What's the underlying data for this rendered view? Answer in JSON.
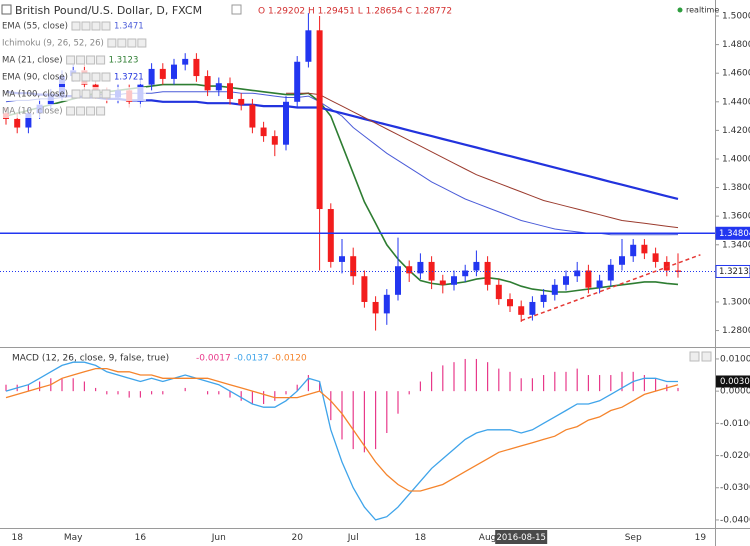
{
  "chart_data": [
    {
      "type": "candlestick",
      "title": "British Pound/U.S. Dollar, D, FXCM",
      "readout": "O 1.29202 H 1.29451 L 1.28654 C 1.28772",
      "status": "realtime",
      "categories": [
        null,
        "18",
        null,
        null,
        null,
        null,
        "May",
        null,
        null,
        null,
        null,
        null,
        "16",
        null,
        null,
        null,
        null,
        null,
        null,
        "Jun",
        null,
        null,
        null,
        null,
        null,
        null,
        "20",
        null,
        null,
        null,
        null,
        "Jul",
        null,
        null,
        null,
        null,
        null,
        "18",
        null,
        null,
        null,
        null,
        null,
        "Aug",
        null,
        null,
        "2016-08-15",
        null,
        null,
        null,
        null,
        null,
        null,
        null,
        null,
        null,
        "Sep",
        null,
        null,
        null,
        null,
        null,
        "19"
      ],
      "crosshair": 46,
      "open": [
        1.432,
        1.428,
        1.422,
        1.432,
        1.438,
        1.445,
        1.458,
        1.462,
        1.452,
        1.446,
        1.443,
        1.448,
        1.44,
        1.452,
        1.463,
        1.456,
        1.466,
        1.47,
        1.458,
        1.448,
        1.453,
        1.442,
        1.438,
        1.422,
        1.416,
        1.41,
        1.44,
        1.468,
        1.49,
        1.365,
        1.328,
        1.332,
        1.318,
        1.3,
        1.292,
        1.305,
        1.325,
        1.32,
        1.328,
        1.315,
        1.312,
        1.318,
        1.322,
        1.328,
        1.312,
        1.302,
        1.297,
        1.291,
        1.3,
        1.305,
        1.312,
        1.318,
        1.322,
        1.31,
        1.315,
        1.326,
        1.332,
        1.34,
        1.334,
        1.328,
        1.322,
        null,
        null
      ],
      "high": [
        1.436,
        1.432,
        1.436,
        1.442,
        1.449,
        1.462,
        1.466,
        1.466,
        1.456,
        1.45,
        1.452,
        1.452,
        1.456,
        1.467,
        1.467,
        1.47,
        1.474,
        1.474,
        1.462,
        1.457,
        1.457,
        1.446,
        1.442,
        1.426,
        1.42,
        1.444,
        1.472,
        1.502,
        1.5,
        1.369,
        1.344,
        1.338,
        1.322,
        1.304,
        1.309,
        1.345,
        1.329,
        1.334,
        1.332,
        1.319,
        1.322,
        1.326,
        1.336,
        1.332,
        1.316,
        1.306,
        1.301,
        1.304,
        1.309,
        1.316,
        1.322,
        1.328,
        1.326,
        1.319,
        1.33,
        1.344,
        1.344,
        1.344,
        1.338,
        1.332,
        1.334,
        null,
        null
      ],
      "low": [
        1.424,
        1.418,
        1.418,
        1.428,
        1.434,
        1.441,
        1.454,
        1.448,
        1.442,
        1.439,
        1.439,
        1.436,
        1.436,
        1.448,
        1.452,
        1.452,
        1.462,
        1.454,
        1.444,
        1.444,
        1.438,
        1.434,
        1.418,
        1.412,
        1.402,
        1.406,
        1.436,
        1.464,
        1.322,
        1.324,
        1.32,
        1.312,
        1.296,
        1.28,
        1.284,
        1.301,
        1.314,
        1.316,
        1.309,
        1.306,
        1.308,
        1.314,
        1.318,
        1.308,
        1.298,
        1.293,
        1.286,
        1.287,
        1.296,
        1.301,
        1.308,
        1.314,
        1.306,
        1.306,
        1.311,
        1.322,
        1.328,
        1.33,
        1.324,
        1.318,
        1.317,
        null,
        null
      ],
      "close": [
        1.428,
        1.422,
        1.432,
        1.438,
        1.445,
        1.458,
        1.462,
        1.452,
        1.446,
        1.443,
        1.448,
        1.44,
        1.452,
        1.463,
        1.456,
        1.466,
        1.47,
        1.458,
        1.448,
        1.453,
        1.442,
        1.438,
        1.422,
        1.416,
        1.41,
        1.44,
        1.468,
        1.49,
        1.365,
        1.328,
        1.332,
        1.318,
        1.3,
        1.292,
        1.305,
        1.325,
        1.32,
        1.328,
        1.315,
        1.312,
        1.318,
        1.322,
        1.328,
        1.312,
        1.302,
        1.297,
        1.291,
        1.3,
        1.305,
        1.312,
        1.318,
        1.322,
        1.31,
        1.315,
        1.326,
        1.332,
        1.34,
        1.334,
        1.328,
        1.322,
        1.321,
        null,
        null
      ],
      "up_color": "#2236f0",
      "down_color": "#f21d1d",
      "series": [
        {
          "name": "EMA (55, close)",
          "value_label": "1.3471",
          "color": "#4a5bd8",
          "width": 1,
          "values": [
            1.44,
            1.441,
            1.441,
            1.442,
            1.442,
            1.443,
            1.444,
            1.444,
            1.445,
            1.445,
            1.445,
            1.446,
            1.446,
            1.446,
            1.447,
            1.447,
            1.447,
            1.447,
            1.447,
            1.447,
            1.447,
            1.446,
            1.446,
            1.445,
            1.444,
            1.443,
            1.443,
            1.444,
            1.44,
            1.435,
            1.43,
            1.422,
            1.416,
            1.41,
            1.404,
            1.399,
            1.394,
            1.389,
            1.384,
            1.38,
            1.376,
            1.372,
            1.369,
            1.366,
            1.363,
            1.36,
            1.357,
            1.355,
            1.353,
            1.351,
            1.35,
            1.349,
            1.348,
            1.348,
            1.347,
            1.347,
            1.347,
            1.347,
            1.347,
            1.347,
            1.3471,
            null,
            null
          ]
        },
        {
          "name": "MA (21, close)",
          "value_label": "1.3123",
          "color": "#2e7d32",
          "width": 1.6,
          "values": [
            1.43,
            1.432,
            1.434,
            1.436,
            1.438,
            1.44,
            1.442,
            1.444,
            1.446,
            1.447,
            1.448,
            1.449,
            1.45,
            1.451,
            1.452,
            1.452,
            1.452,
            1.452,
            1.451,
            1.451,
            1.45,
            1.449,
            1.448,
            1.447,
            1.446,
            1.445,
            1.445,
            1.446,
            1.44,
            1.43,
            1.41,
            1.39,
            1.37,
            1.355,
            1.34,
            1.33,
            1.322,
            1.315,
            1.313,
            1.312,
            1.313,
            1.314,
            1.316,
            1.317,
            1.316,
            1.314,
            1.311,
            1.309,
            1.308,
            1.307,
            1.307,
            1.308,
            1.309,
            1.31,
            1.311,
            1.312,
            1.313,
            1.314,
            1.314,
            1.313,
            1.3123,
            null,
            null
          ]
        },
        {
          "name": "EMA (90, close)",
          "value_label": "1.3721",
          "color": "#2233dd",
          "width": 2.2,
          "values": [
            1.447,
            1.446,
            1.446,
            1.445,
            1.445,
            1.444,
            1.444,
            1.443,
            1.443,
            1.442,
            1.442,
            1.441,
            1.441,
            1.441,
            1.44,
            1.44,
            1.44,
            1.44,
            1.439,
            1.439,
            1.439,
            1.438,
            1.438,
            1.437,
            1.437,
            1.437,
            1.436,
            1.436,
            1.436,
            1.434,
            1.432,
            1.43,
            1.428,
            1.426,
            1.424,
            1.422,
            1.42,
            1.418,
            1.416,
            1.414,
            1.412,
            1.41,
            1.408,
            1.406,
            1.404,
            1.402,
            1.4,
            1.398,
            1.396,
            1.394,
            1.392,
            1.39,
            1.388,
            1.386,
            1.384,
            1.382,
            1.38,
            1.378,
            1.376,
            1.374,
            1.3721,
            null,
            null
          ]
        },
        {
          "name": "MA (100, close)",
          "color": "#9b3b2e",
          "width": 1,
          "values": [
            null,
            null,
            null,
            null,
            null,
            null,
            null,
            null,
            null,
            null,
            null,
            null,
            null,
            null,
            null,
            null,
            null,
            null,
            null,
            null,
            null,
            null,
            null,
            null,
            null,
            1.446,
            1.446,
            1.446,
            1.445,
            1.441,
            1.437,
            1.433,
            1.429,
            1.425,
            1.421,
            1.417,
            1.413,
            1.409,
            1.405,
            1.401,
            1.397,
            1.393,
            1.389,
            1.386,
            1.383,
            1.38,
            1.377,
            1.374,
            1.371,
            1.369,
            1.367,
            1.365,
            1.363,
            1.361,
            1.359,
            1.357,
            1.356,
            1.355,
            1.354,
            1.353,
            1.352,
            null,
            null
          ]
        }
      ],
      "studies": [
        "Ichimoku (9, 26, 52, 26)",
        "MA (10, close)"
      ],
      "levels": [
        {
          "value": 1.34804,
          "label": "1.34804",
          "color": "#2236f0",
          "style": "solid"
        },
        {
          "value": 1.32132,
          "label": "1.32132",
          "color": "#2236f0",
          "style": "dotted"
        }
      ],
      "trendline": {
        "x": [
          46,
          62
        ],
        "y": [
          1.287,
          1.333
        ],
        "color": "#e53935"
      },
      "ylim": [
        1.2685,
        1.5098
      ],
      "yticks": [
        {
          "value": 1.28,
          "label": "1.28000"
        },
        {
          "value": 1.3,
          "label": "1.30000"
        },
        {
          "value": 1.34,
          "label": "1.34000"
        },
        {
          "value": 1.36,
          "label": "1.36000"
        },
        {
          "value": 1.38,
          "label": "1.38000"
        },
        {
          "value": 1.4,
          "label": "1.40000"
        },
        {
          "value": 1.42,
          "label": "1.42000"
        },
        {
          "value": 1.44,
          "label": "1.44000"
        },
        {
          "value": 1.46,
          "label": "1.46000"
        },
        {
          "value": 1.48,
          "label": "1.48000"
        },
        {
          "value": 1.5,
          "label": "1.50000"
        }
      ],
      "grid": false
    },
    {
      "type": "macd",
      "title": "MACD (12, 26, close, 9, false, true)",
      "series": [
        {
          "style": "histogram",
          "value_label": "-0.0017",
          "color": "#e8398a",
          "values": [
            0.002,
            0.002,
            0.002,
            0.003,
            0.004,
            0.004,
            0.004,
            0.003,
            0.001,
            -0.001,
            -0.001,
            -0.002,
            -0.002,
            -0.001,
            -0.001,
            0,
            0.001,
            0,
            -0.001,
            -0.001,
            -0.002,
            -0.003,
            -0.004,
            -0.004,
            -0.003,
            -0.001,
            0.002,
            0.005,
            0.003,
            -0.009,
            -0.015,
            -0.018,
            -0.019,
            -0.018,
            -0.013,
            -0.007,
            -0.001,
            0.003,
            0.006,
            0.008,
            0.009,
            0.01,
            0.01,
            0.009,
            0.007,
            0.006,
            0.004,
            0.004,
            0.005,
            0.006,
            0.006,
            0.007,
            0.005,
            0.005,
            0.005,
            0.006,
            0.006,
            0.005,
            0.004,
            0.002,
            0.001,
            null,
            null
          ]
        },
        {
          "style": "line",
          "value_label": "-0.0137",
          "color": "#3fa4ea",
          "values": [
            0.0,
            0.001,
            0.002,
            0.004,
            0.006,
            0.008,
            0.009,
            0.009,
            0.008,
            0.006,
            0.005,
            0.004,
            0.003,
            0.004,
            0.003,
            0.004,
            0.005,
            0.004,
            0.003,
            0.002,
            0.0,
            -0.002,
            -0.004,
            -0.005,
            -0.005,
            -0.003,
            0.0,
            0.004,
            0.003,
            -0.012,
            -0.022,
            -0.03,
            -0.036,
            -0.04,
            -0.039,
            -0.036,
            -0.032,
            -0.028,
            -0.024,
            -0.021,
            -0.018,
            -0.015,
            -0.013,
            -0.012,
            -0.012,
            -0.012,
            -0.013,
            -0.012,
            -0.01,
            -0.008,
            -0.006,
            -0.004,
            -0.004,
            -0.003,
            -0.001,
            0.001,
            0.003,
            0.004,
            0.004,
            0.003,
            0.003,
            null,
            null
          ]
        },
        {
          "style": "line",
          "value_label": "-0.0120",
          "color": "#f5842c",
          "values": [
            -0.002,
            -0.001,
            0.0,
            0.001,
            0.002,
            0.004,
            0.005,
            0.006,
            0.007,
            0.007,
            0.006,
            0.006,
            0.005,
            0.005,
            0.004,
            0.004,
            0.004,
            0.004,
            0.004,
            0.003,
            0.002,
            0.001,
            0.0,
            -0.001,
            -0.002,
            -0.002,
            -0.002,
            -0.001,
            0.0,
            -0.003,
            -0.007,
            -0.012,
            -0.017,
            -0.022,
            -0.026,
            -0.029,
            -0.031,
            -0.031,
            -0.03,
            -0.029,
            -0.027,
            -0.025,
            -0.023,
            -0.021,
            -0.019,
            -0.018,
            -0.017,
            -0.016,
            -0.015,
            -0.014,
            -0.012,
            -0.011,
            -0.009,
            -0.008,
            -0.006,
            -0.005,
            -0.003,
            -0.001,
            0.0,
            0.001,
            0.002,
            null,
            null
          ]
        }
      ],
      "current": {
        "value": 0.003,
        "label": "0.0030"
      },
      "ylim": [
        -0.0425,
        0.0134
      ],
      "yticks": [
        {
          "value": 0.01,
          "label": "0.0100"
        },
        {
          "value": 0,
          "label": "0.0000"
        },
        {
          "value": -0.01,
          "label": "-0.0100"
        },
        {
          "value": -0.02,
          "label": "-0.0200"
        },
        {
          "value": -0.03,
          "label": "-0.0300"
        },
        {
          "value": -0.04,
          "label": "-0.0400"
        }
      ],
      "grid": false
    }
  ]
}
